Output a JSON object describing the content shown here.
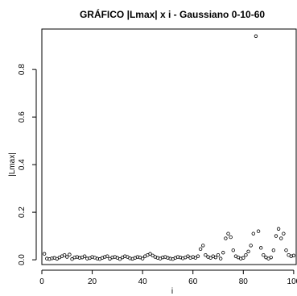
{
  "chart_data": {
    "type": "scatter",
    "title": "GRÁFICO |Lmax| x i - Gaussiano 0-10-60",
    "xlabel": "i",
    "ylabel": "|Lmax|",
    "xlim": [
      0,
      101
    ],
    "ylim": [
      -0.02,
      0.97
    ],
    "xticks": [
      0,
      20,
      40,
      60,
      80,
      100
    ],
    "yticks": [
      0.0,
      0.2,
      0.4,
      0.6,
      0.8
    ],
    "xtick_labels": [
      "0",
      "20",
      "40",
      "60",
      "80",
      "100"
    ],
    "ytick_labels": [
      "0.0",
      "0.2",
      "0.4",
      "0.6",
      "0.8"
    ],
    "grid": false,
    "marker": "open-circle",
    "x": [
      1,
      2,
      3,
      4,
      5,
      6,
      7,
      8,
      9,
      10,
      11,
      12,
      13,
      14,
      15,
      16,
      17,
      18,
      19,
      20,
      21,
      22,
      23,
      24,
      25,
      26,
      27,
      28,
      29,
      30,
      31,
      32,
      33,
      34,
      35,
      36,
      37,
      38,
      39,
      40,
      41,
      42,
      43,
      44,
      45,
      46,
      47,
      48,
      49,
      50,
      51,
      52,
      53,
      54,
      55,
      56,
      57,
      58,
      59,
      60,
      61,
      62,
      63,
      64,
      65,
      66,
      67,
      68,
      69,
      70,
      71,
      72,
      73,
      74,
      75,
      76,
      77,
      78,
      79,
      80,
      81,
      82,
      83,
      84,
      85,
      86,
      87,
      88,
      89,
      90,
      91,
      92,
      93,
      94,
      95,
      96,
      97,
      98,
      99,
      100
    ],
    "y": [
      0.025,
      0.005,
      0.003,
      0.006,
      0.008,
      0.004,
      0.01,
      0.015,
      0.02,
      0.012,
      0.022,
      0.003,
      0.01,
      0.012,
      0.008,
      0.01,
      0.015,
      0.005,
      0.007,
      0.012,
      0.009,
      0.005,
      0.003,
      0.008,
      0.012,
      0.015,
      0.004,
      0.01,
      0.012,
      0.008,
      0.003,
      0.01,
      0.015,
      0.012,
      0.006,
      0.004,
      0.008,
      0.012,
      0.01,
      0.005,
      0.015,
      0.02,
      0.025,
      0.018,
      0.012,
      0.008,
      0.005,
      0.01,
      0.012,
      0.008,
      0.005,
      0.003,
      0.008,
      0.012,
      0.01,
      0.006,
      0.01,
      0.015,
      0.008,
      0.012,
      0.008,
      0.015,
      0.045,
      0.06,
      0.02,
      0.012,
      0.008,
      0.015,
      0.01,
      0.02,
      0.005,
      0.03,
      0.09,
      0.11,
      0.095,
      0.04,
      0.015,
      0.01,
      0.005,
      0.008,
      0.02,
      0.035,
      0.06,
      0.11,
      0.94,
      0.12,
      0.05,
      0.02,
      0.01,
      0.005,
      0.01,
      0.04,
      0.1,
      0.13,
      0.09,
      0.11,
      0.04,
      0.02,
      0.015,
      0.018
    ]
  }
}
